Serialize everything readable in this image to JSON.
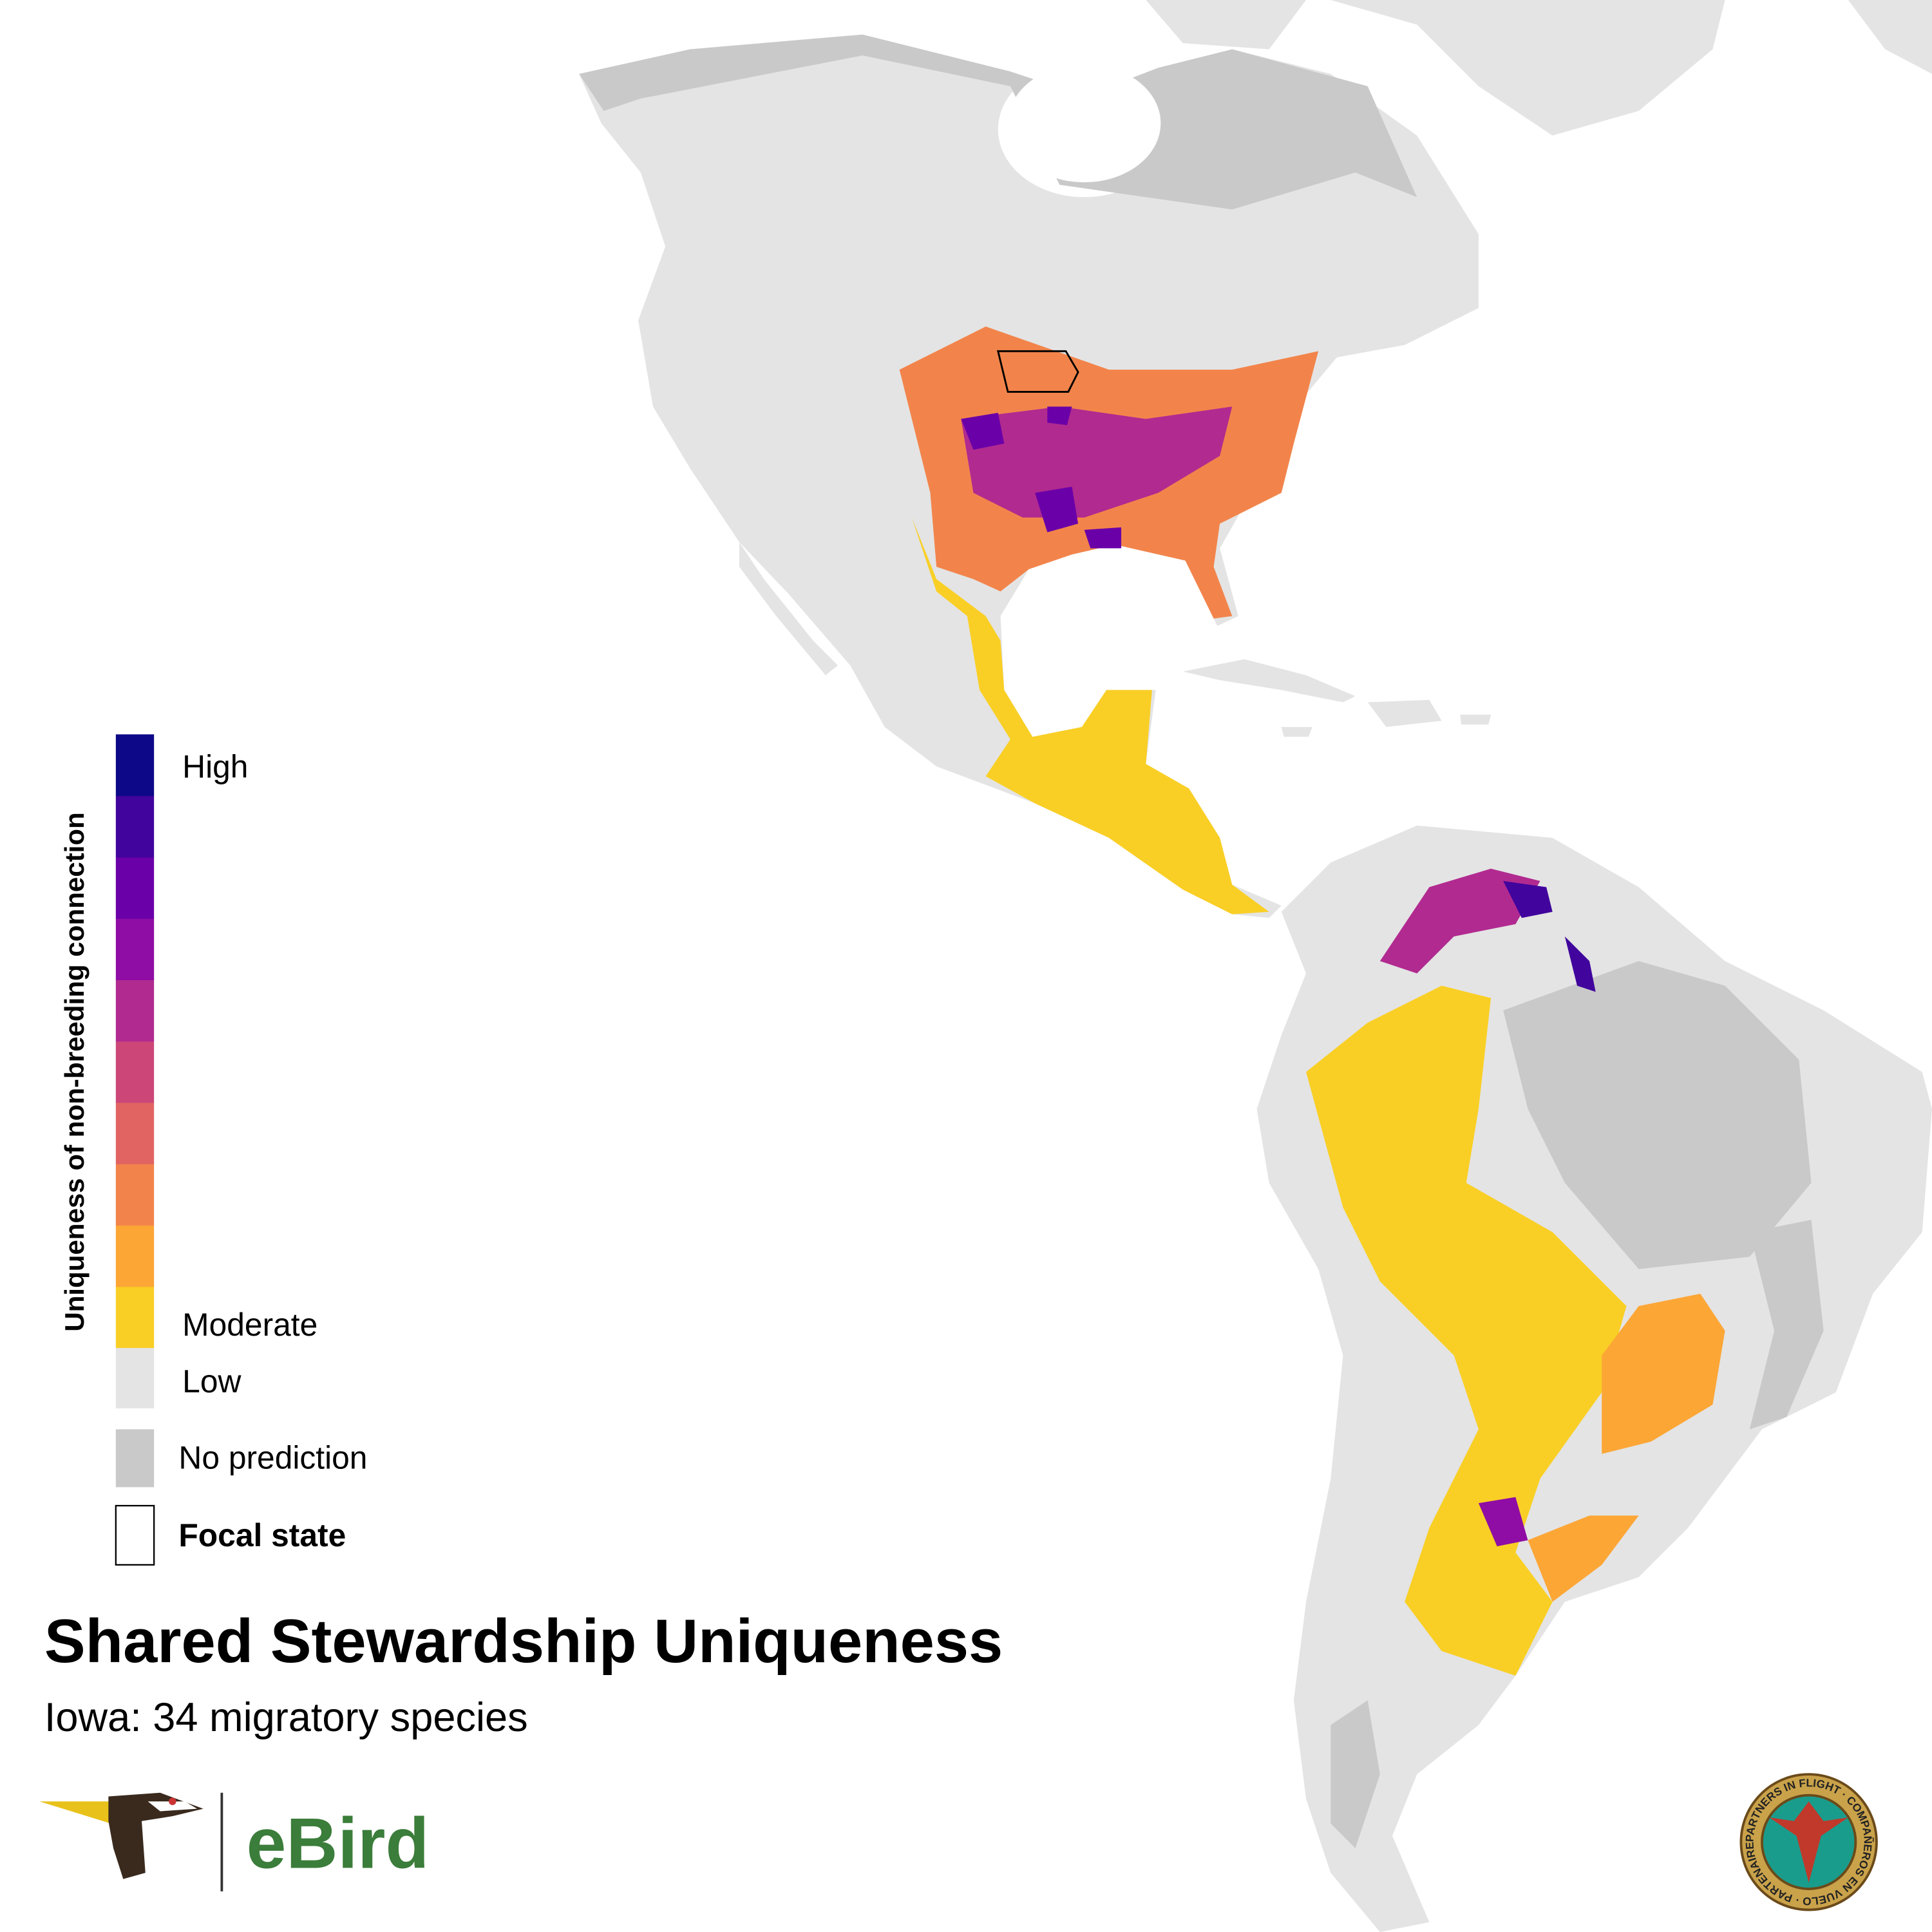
{
  "title": "Shared Stewardship Uniqueness",
  "subtitle": "Iowa: 34 migratory species",
  "legend": {
    "title": "Uniqueness of non-breeding connection",
    "scale_colors": [
      "#f9cf25",
      "#fca636",
      "#f2844b",
      "#e16462",
      "#cc4778",
      "#b12a90",
      "#8f0da4",
      "#6a00a8",
      "#41049d",
      "#0d0887"
    ],
    "high_label": "High",
    "moderate_label": "Moderate",
    "low_label": "Low",
    "low_color": "#e4e4e4",
    "no_prediction_label": "No prediction",
    "no_prediction_color": "#c9c9c9",
    "focal_state_label": "Focal state"
  },
  "logo_text": "eBird",
  "seal_text": "PARTNERS IN FLIGHT · COMPAÑEROS EN VUELO · PARTENAIRES D'ENVOL"
}
